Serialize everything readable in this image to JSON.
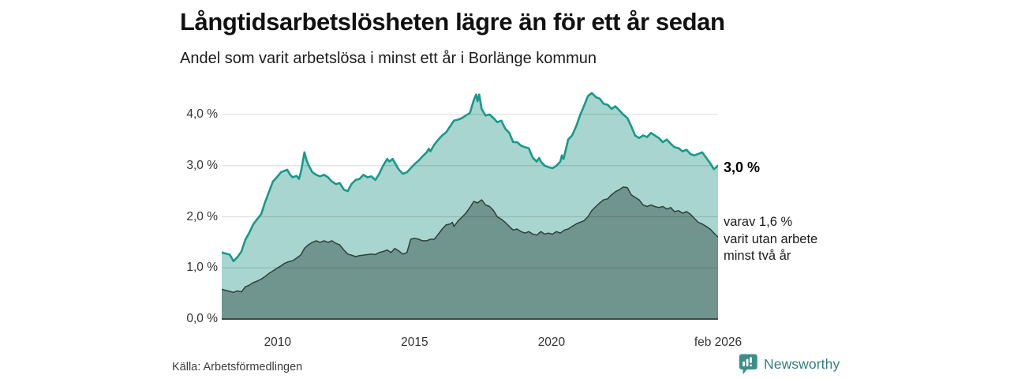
{
  "header": {
    "title": "Långtidsarbetslösheten lägre än för ett år sedan",
    "subtitle": "Andel som varit arbetslösa i minst ett år i Borlänge kommun"
  },
  "annotations": {
    "end_value": "3,0 %",
    "secondary": "varav 1,6 %\nvarit utan arbete\nminst två år"
  },
  "footer": {
    "source": "Källa: Arbetsförmedlingen",
    "brand": "Newsworthy"
  },
  "colors": {
    "accent_line": "#17998b",
    "area_primary": "#a8d5cf",
    "area_secondary": "#70948e",
    "line_secondary": "#313f3c",
    "baseline": "#3c4a47",
    "gridline": "rgba(0,0,0,0.12)",
    "brand_teal": "#337e82",
    "brand_icon": "#3a8f88"
  },
  "chart_data": {
    "type": "area",
    "title": "Långtidsarbetslösheten lägre än för ett år sedan",
    "subtitle": "Andel som varit arbetslösa i minst ett år i Borlänge kommun",
    "unit": "percent",
    "x_range": [
      2007.96,
      2026.08
    ],
    "ylim": [
      0,
      4.6
    ],
    "grid": true,
    "y_ticks": [
      {
        "label": "0,0 %",
        "value": 0
      },
      {
        "label": "1,0 %",
        "value": 1
      },
      {
        "label": "2,0 %",
        "value": 2
      },
      {
        "label": "3,0 %",
        "value": 3
      },
      {
        "label": "4,0 %",
        "value": 4
      }
    ],
    "x_ticks": [
      {
        "label": "2010",
        "t": 2010
      },
      {
        "label": "2015",
        "t": 2015
      },
      {
        "label": "2020",
        "t": 2020
      },
      {
        "label": "feb 2026",
        "t": 2026.08
      }
    ],
    "series": [
      {
        "name": "Arbetslösa minst ett år",
        "end_label": "3,0 %",
        "points": [
          [
            2007.96,
            1.3
          ],
          [
            2008.1,
            1.28
          ],
          [
            2008.25,
            1.26
          ],
          [
            2008.32,
            1.2
          ],
          [
            2008.39,
            1.13
          ],
          [
            2008.46,
            1.17
          ],
          [
            2008.53,
            1.21
          ],
          [
            2008.68,
            1.32
          ],
          [
            2008.82,
            1.55
          ],
          [
            2008.96,
            1.68
          ],
          [
            2009.11,
            1.85
          ],
          [
            2009.25,
            1.95
          ],
          [
            2009.4,
            2.05
          ],
          [
            2009.54,
            2.28
          ],
          [
            2009.68,
            2.48
          ],
          [
            2009.83,
            2.69
          ],
          [
            2009.97,
            2.77
          ],
          [
            2010.12,
            2.87
          ],
          [
            2010.26,
            2.9
          ],
          [
            2010.35,
            2.92
          ],
          [
            2010.46,
            2.82
          ],
          [
            2010.55,
            2.77
          ],
          [
            2010.69,
            2.8
          ],
          [
            2010.78,
            2.74
          ],
          [
            2010.86,
            2.9
          ],
          [
            2010.98,
            3.26
          ],
          [
            2011.06,
            3.1
          ],
          [
            2011.12,
            3.02
          ],
          [
            2011.27,
            2.87
          ],
          [
            2011.41,
            2.82
          ],
          [
            2011.55,
            2.79
          ],
          [
            2011.7,
            2.82
          ],
          [
            2011.84,
            2.77
          ],
          [
            2011.98,
            2.69
          ],
          [
            2012.13,
            2.64
          ],
          [
            2012.27,
            2.66
          ],
          [
            2012.42,
            2.53
          ],
          [
            2012.56,
            2.5
          ],
          [
            2012.7,
            2.64
          ],
          [
            2012.85,
            2.72
          ],
          [
            2012.99,
            2.74
          ],
          [
            2013.13,
            2.82
          ],
          [
            2013.28,
            2.77
          ],
          [
            2013.42,
            2.79
          ],
          [
            2013.57,
            2.72
          ],
          [
            2013.71,
            2.84
          ],
          [
            2013.85,
            3.0
          ],
          [
            2014.0,
            3.13
          ],
          [
            2014.08,
            3.08
          ],
          [
            2014.2,
            3.13
          ],
          [
            2014.34,
            3.0
          ],
          [
            2014.43,
            2.92
          ],
          [
            2014.57,
            2.84
          ],
          [
            2014.72,
            2.87
          ],
          [
            2014.86,
            2.95
          ],
          [
            2015.0,
            3.03
          ],
          [
            2015.15,
            3.1
          ],
          [
            2015.29,
            3.18
          ],
          [
            2015.44,
            3.26
          ],
          [
            2015.52,
            3.33
          ],
          [
            2015.58,
            3.28
          ],
          [
            2015.72,
            3.41
          ],
          [
            2015.87,
            3.51
          ],
          [
            2016.01,
            3.59
          ],
          [
            2016.15,
            3.65
          ],
          [
            2016.3,
            3.77
          ],
          [
            2016.44,
            3.88
          ],
          [
            2016.59,
            3.9
          ],
          [
            2016.73,
            3.93
          ],
          [
            2016.87,
            3.98
          ],
          [
            2017.02,
            4.03
          ],
          [
            2017.16,
            4.28
          ],
          [
            2017.25,
            4.39
          ],
          [
            2017.3,
            4.26
          ],
          [
            2017.36,
            4.39
          ],
          [
            2017.45,
            4.11
          ],
          [
            2017.59,
            3.98
          ],
          [
            2017.74,
            4.0
          ],
          [
            2017.88,
            3.93
          ],
          [
            2018.02,
            3.85
          ],
          [
            2018.17,
            3.88
          ],
          [
            2018.31,
            3.72
          ],
          [
            2018.46,
            3.64
          ],
          [
            2018.6,
            3.46
          ],
          [
            2018.74,
            3.46
          ],
          [
            2018.89,
            3.39
          ],
          [
            2019.03,
            3.36
          ],
          [
            2019.17,
            3.34
          ],
          [
            2019.32,
            3.15
          ],
          [
            2019.46,
            3.08
          ],
          [
            2019.55,
            3.15
          ],
          [
            2019.61,
            3.08
          ],
          [
            2019.75,
            3.0
          ],
          [
            2019.89,
            2.97
          ],
          [
            2020.04,
            2.95
          ],
          [
            2020.18,
            3.0
          ],
          [
            2020.32,
            3.08
          ],
          [
            2020.38,
            3.2
          ],
          [
            2020.44,
            3.13
          ],
          [
            2020.61,
            3.51
          ],
          [
            2020.75,
            3.59
          ],
          [
            2020.9,
            3.77
          ],
          [
            2021.04,
            3.98
          ],
          [
            2021.18,
            4.16
          ],
          [
            2021.33,
            4.36
          ],
          [
            2021.47,
            4.42
          ],
          [
            2021.62,
            4.34
          ],
          [
            2021.76,
            4.31
          ],
          [
            2021.9,
            4.21
          ],
          [
            2022.05,
            4.19
          ],
          [
            2022.19,
            4.11
          ],
          [
            2022.33,
            4.16
          ],
          [
            2022.48,
            4.08
          ],
          [
            2022.62,
            4.0
          ],
          [
            2022.77,
            3.93
          ],
          [
            2022.91,
            3.77
          ],
          [
            2023.05,
            3.59
          ],
          [
            2023.2,
            3.54
          ],
          [
            2023.34,
            3.59
          ],
          [
            2023.49,
            3.56
          ],
          [
            2023.63,
            3.64
          ],
          [
            2023.77,
            3.59
          ],
          [
            2023.92,
            3.54
          ],
          [
            2024.06,
            3.46
          ],
          [
            2024.21,
            3.51
          ],
          [
            2024.35,
            3.43
          ],
          [
            2024.49,
            3.36
          ],
          [
            2024.64,
            3.34
          ],
          [
            2024.78,
            3.28
          ],
          [
            2024.93,
            3.31
          ],
          [
            2025.07,
            3.23
          ],
          [
            2025.21,
            3.2
          ],
          [
            2025.36,
            3.23
          ],
          [
            2025.5,
            3.26
          ],
          [
            2025.65,
            3.15
          ],
          [
            2025.79,
            3.05
          ],
          [
            2025.93,
            2.93
          ],
          [
            2026.08,
            3.0
          ]
        ]
      },
      {
        "name": "varav utan arbete minst två år",
        "end_label": "1,6 %",
        "points": [
          [
            2007.96,
            0.58
          ],
          [
            2008.25,
            0.54
          ],
          [
            2008.39,
            0.52
          ],
          [
            2008.53,
            0.55
          ],
          [
            2008.68,
            0.53
          ],
          [
            2008.82,
            0.63
          ],
          [
            2008.96,
            0.66
          ],
          [
            2009.11,
            0.71
          ],
          [
            2009.25,
            0.74
          ],
          [
            2009.4,
            0.78
          ],
          [
            2009.54,
            0.83
          ],
          [
            2009.68,
            0.89
          ],
          [
            2009.83,
            0.94
          ],
          [
            2009.97,
            0.99
          ],
          [
            2010.12,
            1.04
          ],
          [
            2010.26,
            1.09
          ],
          [
            2010.4,
            1.12
          ],
          [
            2010.55,
            1.14
          ],
          [
            2010.69,
            1.19
          ],
          [
            2010.84,
            1.25
          ],
          [
            2010.98,
            1.38
          ],
          [
            2011.12,
            1.45
          ],
          [
            2011.27,
            1.5
          ],
          [
            2011.41,
            1.53
          ],
          [
            2011.55,
            1.5
          ],
          [
            2011.7,
            1.53
          ],
          [
            2011.84,
            1.5
          ],
          [
            2011.98,
            1.53
          ],
          [
            2012.13,
            1.48
          ],
          [
            2012.27,
            1.45
          ],
          [
            2012.42,
            1.35
          ],
          [
            2012.56,
            1.27
          ],
          [
            2012.7,
            1.25
          ],
          [
            2012.85,
            1.22
          ],
          [
            2012.99,
            1.24
          ],
          [
            2013.13,
            1.25
          ],
          [
            2013.28,
            1.26
          ],
          [
            2013.42,
            1.27
          ],
          [
            2013.57,
            1.26
          ],
          [
            2013.71,
            1.3
          ],
          [
            2013.85,
            1.32
          ],
          [
            2014.0,
            1.35
          ],
          [
            2014.14,
            1.3
          ],
          [
            2014.28,
            1.38
          ],
          [
            2014.43,
            1.33
          ],
          [
            2014.57,
            1.27
          ],
          [
            2014.72,
            1.3
          ],
          [
            2014.86,
            1.56
          ],
          [
            2015.0,
            1.58
          ],
          [
            2015.15,
            1.56
          ],
          [
            2015.29,
            1.53
          ],
          [
            2015.44,
            1.53
          ],
          [
            2015.58,
            1.56
          ],
          [
            2015.72,
            1.56
          ],
          [
            2015.87,
            1.66
          ],
          [
            2016.01,
            1.76
          ],
          [
            2016.15,
            1.84
          ],
          [
            2016.3,
            1.86
          ],
          [
            2016.38,
            1.89
          ],
          [
            2016.44,
            1.81
          ],
          [
            2016.59,
            1.92
          ],
          [
            2016.73,
            1.99
          ],
          [
            2016.87,
            2.07
          ],
          [
            2017.02,
            2.18
          ],
          [
            2017.16,
            2.3
          ],
          [
            2017.3,
            2.27
          ],
          [
            2017.45,
            2.33
          ],
          [
            2017.59,
            2.23
          ],
          [
            2017.74,
            2.2
          ],
          [
            2017.88,
            2.12
          ],
          [
            2018.02,
            2.0
          ],
          [
            2018.17,
            1.95
          ],
          [
            2018.31,
            1.89
          ],
          [
            2018.46,
            1.81
          ],
          [
            2018.6,
            1.74
          ],
          [
            2018.74,
            1.76
          ],
          [
            2018.89,
            1.71
          ],
          [
            2019.03,
            1.68
          ],
          [
            2019.17,
            1.71
          ],
          [
            2019.32,
            1.66
          ],
          [
            2019.46,
            1.64
          ],
          [
            2019.61,
            1.71
          ],
          [
            2019.75,
            1.66
          ],
          [
            2019.89,
            1.68
          ],
          [
            2020.04,
            1.66
          ],
          [
            2020.18,
            1.71
          ],
          [
            2020.32,
            1.68
          ],
          [
            2020.47,
            1.74
          ],
          [
            2020.61,
            1.76
          ],
          [
            2020.75,
            1.81
          ],
          [
            2020.9,
            1.86
          ],
          [
            2021.04,
            1.89
          ],
          [
            2021.18,
            1.92
          ],
          [
            2021.33,
            2.0
          ],
          [
            2021.47,
            2.12
          ],
          [
            2021.62,
            2.2
          ],
          [
            2021.76,
            2.27
          ],
          [
            2021.9,
            2.33
          ],
          [
            2022.05,
            2.35
          ],
          [
            2022.19,
            2.43
          ],
          [
            2022.33,
            2.49
          ],
          [
            2022.48,
            2.53
          ],
          [
            2022.62,
            2.58
          ],
          [
            2022.77,
            2.57
          ],
          [
            2022.91,
            2.43
          ],
          [
            2023.05,
            2.38
          ],
          [
            2023.2,
            2.33
          ],
          [
            2023.34,
            2.23
          ],
          [
            2023.49,
            2.2
          ],
          [
            2023.63,
            2.23
          ],
          [
            2023.77,
            2.2
          ],
          [
            2023.92,
            2.18
          ],
          [
            2024.06,
            2.2
          ],
          [
            2024.21,
            2.15
          ],
          [
            2024.35,
            2.18
          ],
          [
            2024.49,
            2.1
          ],
          [
            2024.64,
            2.12
          ],
          [
            2024.78,
            2.07
          ],
          [
            2024.93,
            2.1
          ],
          [
            2025.07,
            2.05
          ],
          [
            2025.21,
            1.97
          ],
          [
            2025.36,
            1.89
          ],
          [
            2025.5,
            1.86
          ],
          [
            2025.65,
            1.81
          ],
          [
            2025.79,
            1.76
          ],
          [
            2025.93,
            1.68
          ],
          [
            2026.08,
            1.6
          ]
        ]
      }
    ]
  }
}
